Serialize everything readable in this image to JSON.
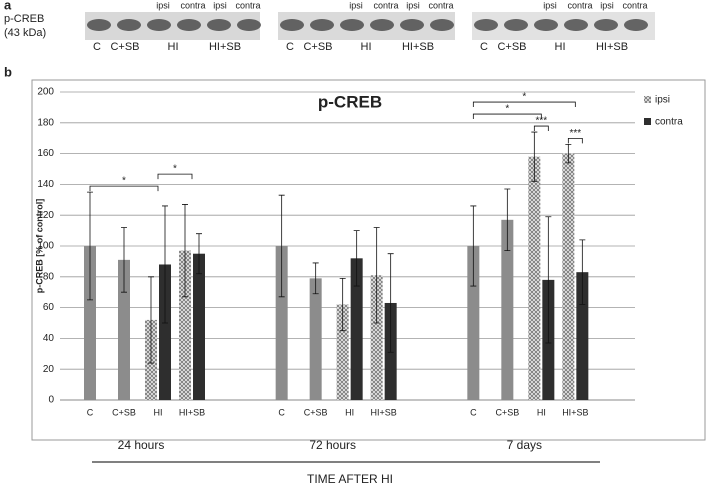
{
  "panel_a": {
    "label": "a",
    "protein": "p-CREB",
    "size": "(43 kDa)",
    "lanes": [
      "C",
      "C+SB",
      "HI",
      "HI+SB"
    ],
    "sides": [
      "ipsi",
      "contra",
      "ipsi",
      "contra"
    ]
  },
  "chart_data": {
    "type": "bar",
    "panel_label": "b",
    "title": "p-CREB",
    "ylabel": "p-CREB [% of control]",
    "xlabel": "TIME AFTER HI",
    "categories": [
      "C",
      "C+SB",
      "HI",
      "HI+SB",
      "C",
      "C+SB",
      "HI",
      "HI+SB",
      "C",
      "C+SB",
      "HI",
      "HI+SB"
    ],
    "groups": [
      "24 hours",
      "72 hours",
      "7 days"
    ],
    "series": [
      {
        "color": "#8c8c8c",
        "values": [
          100,
          91,
          null,
          null,
          100,
          79,
          null,
          null,
          100,
          117,
          null,
          null
        ],
        "errors": [
          35,
          21,
          null,
          null,
          33,
          10,
          null,
          null,
          26,
          20,
          null,
          null
        ]
      },
      {
        "name": "ipsi",
        "color": "#d4d4d4",
        "hatch": true,
        "values": [
          null,
          null,
          52,
          97,
          null,
          null,
          62,
          81,
          null,
          null,
          158,
          160
        ],
        "errors": [
          null,
          null,
          28,
          30,
          null,
          null,
          17,
          31,
          null,
          null,
          16,
          6
        ]
      },
      {
        "name": "contra",
        "color": "#2e2e2e",
        "values": [
          null,
          null,
          88,
          95,
          null,
          null,
          92,
          63,
          null,
          null,
          78,
          83
        ],
        "errors": [
          null,
          null,
          38,
          13,
          null,
          null,
          18,
          32,
          null,
          null,
          41,
          21
        ]
      }
    ],
    "significance": [
      {
        "text": "*",
        "between": [
          0,
          2
        ]
      },
      {
        "text": "*",
        "between": [
          2,
          3
        ]
      },
      {
        "text": "***",
        "between": [
          10,
          10
        ]
      },
      {
        "text": "***",
        "between": [
          11,
          11
        ]
      },
      {
        "text": "*",
        "between": [
          8,
          10
        ]
      },
      {
        "text": "*",
        "between": [
          8,
          11
        ]
      }
    ],
    "ylim": [
      0,
      200
    ],
    "yticks": [
      0,
      20,
      40,
      60,
      80,
      100,
      120,
      140,
      160,
      180,
      200
    ],
    "grid": true,
    "legend": "right"
  }
}
